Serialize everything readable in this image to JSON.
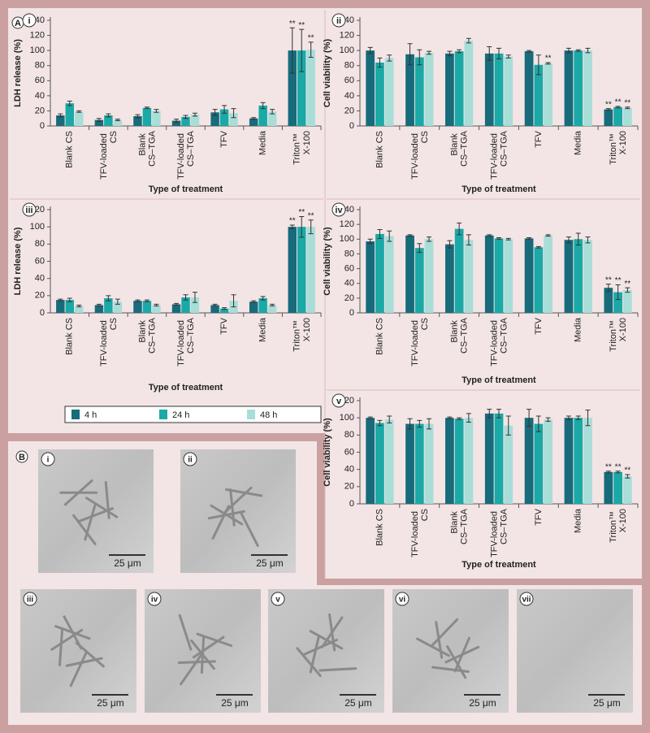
{
  "part_a": "A",
  "legend": [
    {
      "name": "4 h",
      "color": "#176b7b"
    },
    {
      "name": "24 h",
      "color": "#1aa9a6"
    },
    {
      "name": "48 h",
      "color": "#a9ddd8"
    }
  ],
  "chart_data": [
    {
      "type": "bar",
      "panel": "i",
      "ylabel": "LDH release (%)",
      "xlabel": "Type of treatment",
      "ylim": [
        0,
        140
      ],
      "yticks": [
        0,
        20,
        40,
        60,
        80,
        100,
        120,
        140
      ],
      "categories": [
        "Blank CS",
        "TFV-loaded CS",
        "Blank CS–TGA",
        "TFV-loaded CS–TGA",
        "TFV",
        "Media",
        "Triton™ X-100"
      ],
      "series": [
        {
          "values": [
            14,
            8,
            13,
            7,
            18,
            10,
            100
          ],
          "errors": [
            2,
            2,
            2,
            2,
            4,
            1,
            30
          ],
          "annotations": [
            null,
            null,
            null,
            null,
            null,
            null,
            "**"
          ]
        },
        {
          "values": [
            30,
            14,
            24,
            12,
            22,
            27,
            100
          ],
          "errors": [
            3,
            2,
            1,
            2,
            5,
            4,
            28
          ],
          "annotations": [
            null,
            null,
            null,
            null,
            null,
            null,
            "**"
          ]
        },
        {
          "values": [
            19,
            8,
            20,
            15,
            17,
            19,
            101
          ],
          "errors": [
            1,
            1,
            2,
            2,
            6,
            3,
            10
          ],
          "annotations": [
            null,
            null,
            null,
            null,
            null,
            null,
            "**"
          ]
        }
      ]
    },
    {
      "type": "bar",
      "panel": "ii",
      "ylabel": "Cell viability (%)",
      "xlabel": "Type of treatment",
      "ylim": [
        0,
        140
      ],
      "yticks": [
        0,
        20,
        40,
        60,
        80,
        100,
        120,
        140
      ],
      "categories": [
        "Blank CS",
        "TFV-loaded CS",
        "Blank CS–TGA",
        "TFV-loaded CS–TGA",
        "TFV",
        "Media",
        "Triton™ X-100"
      ],
      "series": [
        {
          "values": [
            100,
            95,
            96,
            96,
            99,
            100,
            22
          ],
          "errors": [
            4,
            14,
            3,
            9,
            1,
            3,
            1
          ],
          "annotations": [
            null,
            null,
            null,
            null,
            null,
            null,
            "**"
          ]
        },
        {
          "values": [
            84,
            91,
            99,
            96,
            81,
            100,
            25
          ],
          "errors": [
            6,
            10,
            2,
            7,
            13,
            1,
            1
          ],
          "annotations": [
            null,
            null,
            null,
            null,
            null,
            null,
            "**"
          ]
        },
        {
          "values": [
            90,
            97,
            113,
            92,
            83,
            100,
            24
          ],
          "errors": [
            4,
            2,
            3,
            2,
            1,
            3,
            1
          ],
          "annotations": [
            null,
            null,
            null,
            null,
            "**",
            null,
            "**"
          ]
        }
      ]
    },
    {
      "type": "bar",
      "panel": "iii",
      "ylabel": "LDH release (%)",
      "xlabel": "Type of treatment",
      "ylim": [
        0,
        120
      ],
      "yticks": [
        0,
        20,
        40,
        60,
        80,
        100,
        120
      ],
      "categories": [
        "Blank CS",
        "TFV-loaded CS",
        "Blank CS–TGA",
        "TFV-loaded CS–TGA",
        "TFV",
        "Media",
        "Triton™ X-100"
      ],
      "series": [
        {
          "values": [
            15,
            9,
            14,
            10,
            9,
            13,
            100
          ],
          "errors": [
            1,
            1,
            1,
            1,
            1,
            1,
            2
          ],
          "annotations": [
            null,
            null,
            null,
            null,
            null,
            null,
            "**"
          ]
        },
        {
          "values": [
            15,
            17,
            14,
            18,
            5,
            17,
            100
          ],
          "errors": [
            2,
            3,
            1,
            3,
            1,
            2,
            12
          ],
          "annotations": [
            null,
            null,
            null,
            null,
            null,
            null,
            "**"
          ]
        },
        {
          "values": [
            8,
            13,
            9,
            18,
            14,
            9,
            100
          ],
          "errors": [
            1,
            3,
            1,
            6,
            7,
            1,
            8
          ],
          "annotations": [
            null,
            null,
            null,
            null,
            null,
            null,
            "**"
          ]
        }
      ]
    },
    {
      "type": "bar",
      "panel": "iv",
      "ylabel": "Cell viability (%)",
      "xlabel": "Type of treatment",
      "ylim": [
        0,
        140
      ],
      "yticks": [
        0,
        20,
        40,
        60,
        80,
        100,
        120,
        140
      ],
      "categories": [
        "Blank CS",
        "TFV-loaded CS",
        "Blank CS–TGA",
        "TFV-loaded CS–TGA",
        "TFV",
        "Media",
        "Triton™ X-100"
      ],
      "series": [
        {
          "values": [
            97,
            105,
            93,
            105,
            101,
            99,
            34
          ],
          "errors": [
            3,
            1,
            5,
            1,
            1,
            4,
            5
          ],
          "annotations": [
            null,
            null,
            null,
            null,
            null,
            null,
            "**"
          ]
        },
        {
          "values": [
            107,
            88,
            114,
            101,
            89,
            100,
            28
          ],
          "errors": [
            6,
            6,
            8,
            1,
            1,
            8,
            10
          ],
          "annotations": [
            null,
            null,
            null,
            null,
            null,
            null,
            "**"
          ]
        },
        {
          "values": [
            104,
            100,
            99,
            100,
            105,
            99,
            31
          ],
          "errors": [
            7,
            3,
            7,
            1,
            1,
            4,
            3
          ],
          "annotations": [
            null,
            null,
            null,
            null,
            null,
            null,
            "**"
          ]
        }
      ]
    },
    {
      "type": "bar",
      "panel": "v",
      "ylabel": "Cell viability (%)",
      "xlabel": "Type of treatment",
      "ylim": [
        0,
        120
      ],
      "yticks": [
        0,
        20,
        40,
        60,
        80,
        100,
        120
      ],
      "categories": [
        "Blank CS",
        "TFV-loaded CS",
        "Blank CS–TGA",
        "TFV-loaded CS–TGA",
        "TFV",
        "Media",
        "Triton™ X-100"
      ],
      "series": [
        {
          "values": [
            100,
            93,
            100,
            105,
            100,
            100,
            37
          ],
          "errors": [
            1,
            6,
            1,
            5,
            10,
            2,
            1
          ],
          "annotations": [
            null,
            null,
            null,
            null,
            null,
            null,
            "**"
          ]
        },
        {
          "values": [
            94,
            93,
            99,
            105,
            93,
            100,
            37
          ],
          "errors": [
            3,
            4,
            1,
            5,
            9,
            2,
            1
          ],
          "annotations": [
            null,
            null,
            null,
            null,
            null,
            null,
            "**"
          ]
        },
        {
          "values": [
            98,
            93,
            100,
            91,
            98,
            100,
            32
          ],
          "errors": [
            4,
            6,
            5,
            11,
            2,
            9,
            2
          ],
          "annotations": [
            null,
            null,
            null,
            null,
            null,
            null,
            "**"
          ]
        }
      ]
    }
  ],
  "micrographs": {
    "label": "B",
    "panels": [
      {
        "label": "i",
        "scale": "25 μm"
      },
      {
        "label": "ii",
        "scale": "25 μm"
      },
      {
        "label": "iii",
        "scale": "25 μm"
      },
      {
        "label": "iv",
        "scale": "25 μm"
      },
      {
        "label": "v",
        "scale": "25 μm"
      },
      {
        "label": "vi",
        "scale": "25 μm"
      },
      {
        "label": "vii",
        "scale": "25 μm"
      }
    ]
  }
}
